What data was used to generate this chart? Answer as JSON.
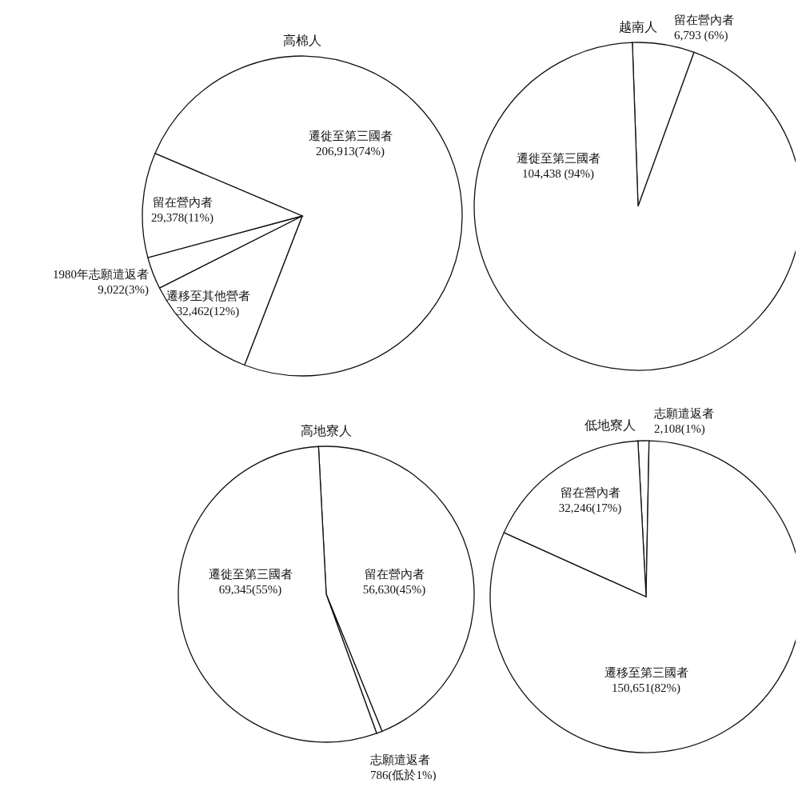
{
  "chart_data": [
    {
      "type": "pie",
      "title": "高棉人",
      "categories": [
        "遷徙至第三國者",
        "遷移至其他營者",
        "1980年志願遣返者",
        "留在營內者"
      ],
      "values": [
        206913,
        32462,
        9022,
        29378
      ],
      "value_labels": [
        "206,913(74%)",
        "32,462(12%)",
        "9,022(3%)",
        "29,378(11%)"
      ],
      "colors": [
        "#ffffff",
        "#ffffff",
        "#ffffff",
        "#ffffff"
      ]
    },
    {
      "type": "pie",
      "title": "越南人",
      "categories": [
        "留在營內者",
        "遷徙至第三國者"
      ],
      "values": [
        6793,
        104438
      ],
      "value_labels": [
        "6,793 (6%)",
        "104,438 (94%)"
      ],
      "colors": [
        "#ffffff",
        "#ffffff"
      ]
    },
    {
      "type": "pie",
      "title": "高地寮人",
      "categories": [
        "留在營內者",
        "志願遣返者",
        "遷徙至第三國者"
      ],
      "values": [
        56630,
        786,
        69345
      ],
      "value_labels": [
        "56,630(45%)",
        "786(低於1%)",
        "69,345(55%)"
      ],
      "colors": [
        "#ffffff",
        "#ffffff",
        "#ffffff"
      ]
    },
    {
      "type": "pie",
      "title": "低地寮人",
      "categories": [
        "志願遣返者",
        "遷移至第三國者",
        "留在營內者"
      ],
      "values": [
        2108,
        150651,
        32246
      ],
      "value_labels": [
        "2,108(1%)",
        "150,651(82%)",
        "32,246(17%)"
      ],
      "colors": [
        "#ffffff",
        "#ffffff",
        "#ffffff"
      ]
    }
  ]
}
